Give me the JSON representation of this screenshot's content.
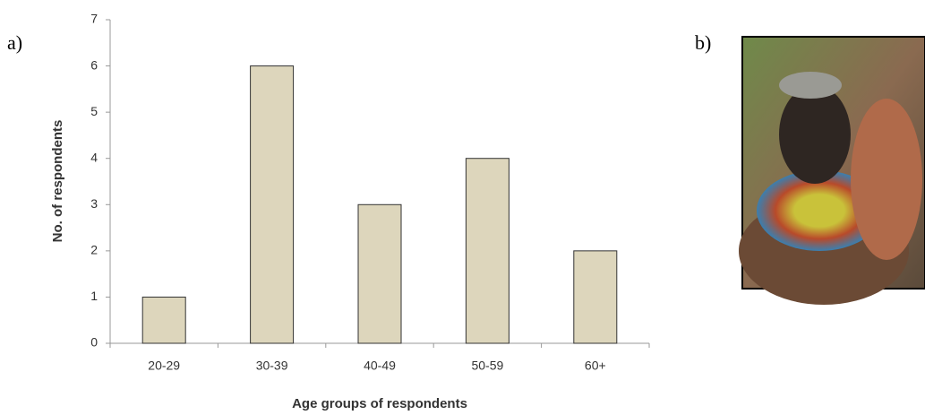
{
  "panel_labels": [
    "a)",
    "b)"
  ],
  "chart_data": {
    "type": "bar",
    "categories": [
      "20-29",
      "30-39",
      "40-49",
      "50-59",
      "60+"
    ],
    "values": [
      1,
      6,
      3,
      4,
      2
    ],
    "color": "#ddd6bc",
    "xlabel": "Age groups of respondents",
    "ylabel": "No. of respondents",
    "ylim": [
      0,
      7
    ],
    "yticks": [
      0,
      1,
      2,
      3,
      4,
      5,
      6,
      7
    ],
    "grid": false
  }
}
